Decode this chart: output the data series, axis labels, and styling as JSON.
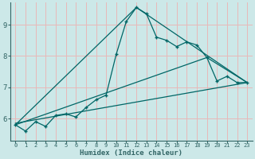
{
  "xlabel": "Humidex (Indice chaleur)",
  "bg_color": "#cce8e8",
  "grid_color": "#e8b8b8",
  "line_color": "#006666",
  "axis_color": "#336666",
  "xlim": [
    -0.5,
    23.5
  ],
  "ylim": [
    5.3,
    9.7
  ],
  "yticks": [
    6,
    7,
    8,
    9
  ],
  "xticks": [
    0,
    1,
    2,
    3,
    4,
    5,
    6,
    7,
    8,
    9,
    10,
    11,
    12,
    13,
    14,
    15,
    16,
    17,
    18,
    19,
    20,
    21,
    22,
    23
  ],
  "series1_x": [
    0,
    1,
    2,
    3,
    4,
    5,
    6,
    7,
    8,
    9,
    10,
    11,
    12,
    13,
    14,
    15,
    16,
    17,
    18,
    19,
    20,
    21,
    22,
    23
  ],
  "series1_y": [
    5.8,
    5.6,
    5.9,
    5.75,
    6.1,
    6.15,
    6.05,
    6.35,
    6.6,
    6.75,
    8.05,
    9.1,
    9.55,
    9.35,
    8.6,
    8.5,
    8.3,
    8.45,
    8.35,
    7.95,
    7.2,
    7.35,
    7.15,
    7.15
  ],
  "series2_x": [
    0,
    23
  ],
  "series2_y": [
    5.85,
    7.15
  ],
  "series3_x": [
    0,
    19,
    23
  ],
  "series3_y": [
    5.8,
    7.95,
    7.15
  ],
  "series4_x": [
    0,
    12,
    23
  ],
  "series4_y": [
    5.8,
    9.55,
    7.15
  ]
}
